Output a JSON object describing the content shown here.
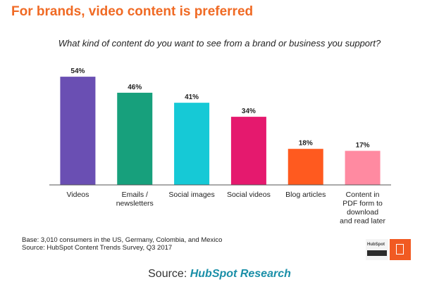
{
  "header": {
    "title": "For brands, video content is preferred"
  },
  "chart_data": {
    "type": "bar",
    "title": "What kind of content do you want to see from a brand or business you support?",
    "categories": [
      [
        "Videos"
      ],
      [
        "Emails /",
        "newsletters"
      ],
      [
        "Social images"
      ],
      [
        "Social videos"
      ],
      [
        "Blog articles"
      ],
      [
        "Content in",
        "PDF form to",
        "download",
        "and read later"
      ]
    ],
    "values": [
      54,
      46,
      41,
      34,
      18,
      17
    ],
    "value_labels": [
      "54%",
      "46%",
      "41%",
      "34%",
      "18%",
      "17%"
    ],
    "colors": [
      "#6a4fb3",
      "#17a07c",
      "#16c9d6",
      "#e5196e",
      "#ff5a1f",
      "#ff8aa1"
    ],
    "ylim": [
      0,
      60
    ],
    "grid": false,
    "legend": "none"
  },
  "notes": {
    "base": "Base: 3,010 consumers in the US, Germany, Colombia, and Mexico",
    "source_line": "Source: HubSpot Content Trends Survey, Q3 2017"
  },
  "logo": {
    "brand": "HubSpot",
    "bar_text": "RESEARCH"
  },
  "footer": {
    "source_prefix": "Source: ",
    "source_name": "HubSpot Research"
  }
}
